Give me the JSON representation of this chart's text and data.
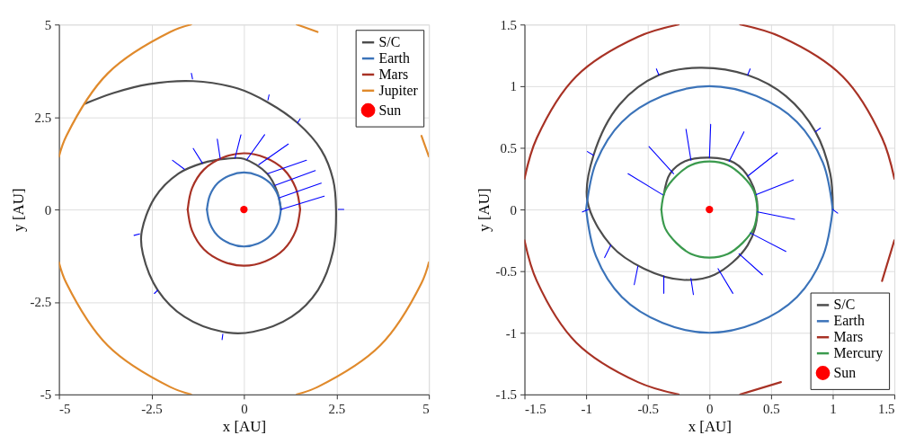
{
  "chart_data": [
    {
      "type": "line",
      "xlabel": "x [AU]",
      "ylabel": "y [AU]",
      "xlim": [
        -5,
        5
      ],
      "ylim": [
        -5,
        5
      ],
      "xticks": [
        -5,
        -2.5,
        0,
        2.5,
        5
      ],
      "yticks": [
        -5,
        -2.5,
        0,
        2.5,
        5
      ],
      "grid": true,
      "legend": "top right",
      "series": [
        {
          "name": "S/C",
          "color": "#4d4d4d",
          "x": [
            1,
            0.9,
            0.63,
            0,
            -0.48,
            -1.13,
            -1.77,
            -2.41,
            -2.77,
            -2.73,
            -2.33,
            -1.61,
            -0.56,
            0.24,
            1.29,
            2.0,
            2.41,
            2.49,
            2.41,
            2.09,
            1.45,
            0.64,
            -0.16,
            -1.37,
            -2.57,
            -3.53,
            -4.3
          ],
          "values": [
            0,
            0.48,
            0.97,
            1.37,
            1.37,
            1.25,
            0.97,
            0.32,
            -0.65,
            -1.21,
            -2.18,
            -2.9,
            -3.31,
            -3.31,
            -2.9,
            -2.18,
            -1.13,
            0,
            0.81,
            1.61,
            2.34,
            2.9,
            3.27,
            3.47,
            3.39,
            3.15,
            2.86
          ]
        },
        {
          "name": "Earth",
          "color": "#3b73b9",
          "x": [
            1,
            0.92,
            0.71,
            0.38,
            0,
            -0.38,
            -0.71,
            -0.92,
            -1,
            null,
            -1,
            -0.92,
            -0.71,
            -0.38,
            0,
            0.38,
            0.71,
            0.92,
            1
          ],
          "values": [
            0,
            0.38,
            0.71,
            0.92,
            1,
            0.92,
            0.71,
            0.38,
            0,
            null,
            0,
            -0.38,
            -0.71,
            -0.92,
            -1,
            -0.92,
            -0.71,
            -0.38,
            0
          ]
        },
        {
          "name": "Mars",
          "color": "#a83225",
          "x": [
            1.52,
            1.4,
            1.08,
            0.58,
            0,
            -0.58,
            -1.08,
            -1.4,
            -1.52,
            null,
            -1.52,
            -1.4,
            -1.08,
            -0.58,
            0,
            0.58,
            1.08,
            1.4,
            1.52
          ],
          "values": [
            0,
            0.58,
            1.08,
            1.4,
            1.52,
            1.4,
            1.08,
            0.58,
            0,
            null,
            0,
            -0.58,
            -1.08,
            -1.4,
            -1.52,
            -1.4,
            -1.08,
            -0.58,
            0
          ]
        },
        {
          "name": "Jupiter",
          "color": "#e08a2c",
          "x": [
            5,
            4.8,
            null,
            1.99,
            1.43,
            null,
            -1.43,
            -1.99,
            -3.68,
            -4.8,
            -5,
            null,
            -5,
            -4.8,
            -3.68,
            -1.99,
            -1.43,
            null,
            1.43,
            1.99,
            3.68,
            4.8,
            5
          ],
          "values": [
            1.43,
            1.99,
            null,
            4.8,
            5,
            null,
            5,
            4.8,
            3.68,
            1.99,
            1.43,
            null,
            -1.43,
            -1.99,
            -3.68,
            -4.8,
            -5,
            null,
            -5,
            -4.8,
            -3.68,
            -1.99,
            -1.43
          ]
        },
        {
          "color": "#0000ff",
          "x": [
            1,
            2.17,
            null,
            0.96,
            2.09,
            null,
            0.84,
            1.93,
            null,
            0.64,
            1.69,
            null,
            0.4,
            1.2,
            null,
            0.08,
            0.56,
            null,
            -0.24,
            -0.08,
            null,
            -0.64,
            -0.72,
            null,
            -1.12,
            -1.37,
            null,
            -1.61,
            -1.93,
            null,
            -2.82,
            -2.97,
            null,
            -2.33,
            -2.42,
            null,
            -0.57,
            -0.59,
            null,
            2.55,
            2.7,
            null,
            1.45,
            1.52,
            null,
            0.65,
            0.68,
            null,
            -1.39,
            -1.42
          ],
          "values": [
            0,
            0.36,
            null,
            0.32,
            0.71,
            null,
            0.65,
            1.05,
            null,
            0.97,
            1.33,
            null,
            1.21,
            1.77,
            null,
            1.35,
            2.02,
            null,
            1.39,
            2.02,
            null,
            1.37,
            1.9,
            null,
            1.25,
            1.65,
            null,
            1.09,
            1.33,
            null,
            -0.66,
            -0.7,
            null,
            -2.18,
            -2.27,
            null,
            -3.37,
            -3.52,
            null,
            0,
            0,
            null,
            2.34,
            2.45,
            null,
            2.96,
            3.1,
            null,
            3.53,
            3.68
          ]
        },
        {
          "name": "Sun",
          "color": "#ff0000",
          "type": "scatter",
          "marker": "circle",
          "x": [
            0
          ],
          "values": [
            0
          ]
        }
      ]
    },
    {
      "type": "line",
      "xlabel": "x [AU]",
      "ylabel": "y [AU]",
      "xlim": [
        -1.5,
        1.5
      ],
      "ylim": [
        -1.5,
        1.5
      ],
      "xticks": [
        -1.5,
        -1,
        -0.5,
        0,
        0.5,
        1,
        1.5
      ],
      "yticks": [
        -1.5,
        -1,
        -0.5,
        0,
        0.5,
        1,
        1.5
      ],
      "grid": true,
      "legend": "bottom right",
      "series": [
        {
          "name": "S/C",
          "color": "#4d4d4d",
          "x": [
            -0.37,
            -0.32,
            -0.2,
            0,
            0.2,
            0.33,
            0.39,
            0.31,
            0.04,
            -0.22,
            -0.53,
            -0.8,
            -0.99,
            -0.94,
            -0.73,
            -0.41,
            -0.08,
            0.31,
            0.62,
            0.86,
            0.98,
            1.0
          ],
          "values": [
            0.12,
            0.29,
            0.39,
            0.42,
            0.38,
            0.24,
            0,
            -0.29,
            -0.53,
            -0.57,
            -0.48,
            -0.29,
            0.07,
            0.44,
            0.85,
            1.09,
            1.15,
            1.09,
            0.92,
            0.63,
            0.29,
            0
          ]
        },
        {
          "name": "Earth",
          "color": "#3b73b9",
          "x": [
            1,
            0.92,
            0.71,
            0.38,
            0,
            -0.38,
            -0.71,
            -0.92,
            -1,
            null,
            -1,
            -0.92,
            -0.71,
            -0.38,
            0,
            0.38,
            0.71,
            0.92,
            1
          ],
          "values": [
            0,
            0.38,
            0.71,
            0.92,
            1,
            0.92,
            0.71,
            0.38,
            0,
            null,
            0,
            -0.38,
            -0.71,
            -0.92,
            -1,
            -0.92,
            -0.71,
            -0.38,
            0
          ]
        },
        {
          "name": "Mars",
          "color": "#a83225",
          "x": [
            1.5,
            1.4,
            1.08,
            0.58,
            0.25,
            null,
            -0.25,
            -0.58,
            -1.08,
            -1.4,
            -1.5,
            null,
            -1.5,
            -1.4,
            -1.08,
            -0.58,
            -0.25,
            null,
            0.25,
            0.58,
            null,
            1.4,
            1.5
          ],
          "values": [
            0.25,
            0.58,
            1.08,
            1.4,
            1.5,
            null,
            1.5,
            1.4,
            1.08,
            0.58,
            0.25,
            null,
            -0.25,
            -0.58,
            -1.08,
            -1.4,
            -1.5,
            null,
            -1.5,
            -1.4,
            null,
            -0.58,
            -0.25
          ]
        },
        {
          "name": "Mercury",
          "color": "#3a9a4d",
          "x": [
            0.39,
            0.36,
            0.27,
            0.15,
            0,
            -0.15,
            -0.27,
            -0.36,
            -0.39,
            null,
            -0.39,
            -0.36,
            -0.27,
            -0.15,
            0,
            0.15,
            0.27,
            0.36,
            0.39
          ],
          "values": [
            0,
            0.15,
            0.27,
            0.36,
            0.39,
            0.36,
            0.27,
            0.15,
            0,
            null,
            0,
            -0.15,
            -0.27,
            -0.36,
            -0.39,
            -0.36,
            -0.27,
            -0.15,
            0
          ]
        },
        {
          "color": "#0000ff",
          "x": [
            -0.38,
            -0.66,
            null,
            -0.29,
            -0.49,
            null,
            -0.15,
            -0.19,
            null,
            0,
            0.01,
            null,
            0.16,
            0.28,
            null,
            0.31,
            0.55,
            null,
            0.38,
            0.68,
            null,
            0.39,
            0.69,
            null,
            0.33,
            0.62,
            null,
            0.24,
            0.43,
            null,
            0.07,
            0.19,
            null,
            -0.15,
            -0.13,
            null,
            -0.37,
            -0.37,
            null,
            -0.58,
            -0.61,
            null,
            -0.8,
            -0.85,
            null,
            -0.98,
            -1.03,
            null,
            -0.94,
            -0.99,
            null,
            -0.41,
            -0.43,
            null,
            0.31,
            0.33,
            null,
            0.86,
            0.9,
            null,
            1.0,
            1.04
          ],
          "values": [
            0.12,
            0.29,
            null,
            0.29,
            0.51,
            null,
            0.4,
            0.65,
            null,
            0.42,
            0.69,
            null,
            0.39,
            0.63,
            null,
            0.27,
            0.46,
            null,
            0.12,
            0.24,
            null,
            -0.02,
            -0.08,
            null,
            -0.19,
            -0.34,
            null,
            -0.36,
            -0.53,
            null,
            -0.48,
            -0.68,
            null,
            -0.56,
            -0.69,
            null,
            -0.54,
            -0.68,
            null,
            -0.46,
            -0.61,
            null,
            -0.29,
            -0.39,
            null,
            0,
            -0.02,
            null,
            0.44,
            0.47,
            null,
            1.09,
            1.14,
            null,
            1.09,
            1.14,
            null,
            0.63,
            0.66,
            null,
            0,
            -0.03
          ]
        },
        {
          "name": "Sun",
          "color": "#ff0000",
          "type": "scatter",
          "marker": "circle",
          "x": [
            0
          ],
          "values": [
            0
          ]
        }
      ]
    }
  ]
}
